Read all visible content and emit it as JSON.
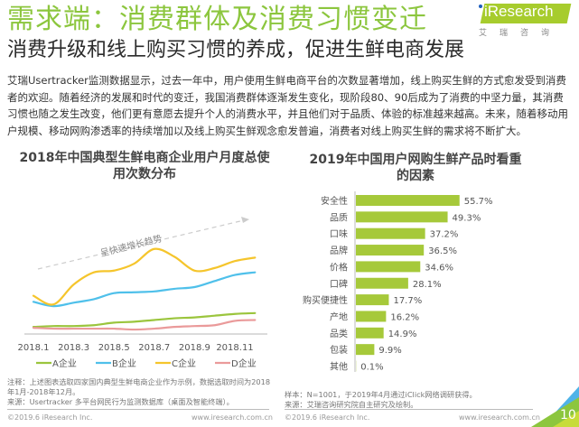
{
  "header": {
    "title": "需求端：消费群体及消费习惯变迁",
    "subtitle": "消费升级和线上购买习惯的养成，促进生鲜电商发展",
    "logo_text": "iResearch",
    "logo_cn": "艾瑞咨询"
  },
  "paragraph": "艾瑞Usertracker监测数据显示，过去一年中，用户使用生鲜电商平台的次数显著增加，线上购买生鲜的方式愈发受到消费者的欢迎。随着经济的发展和时代的变迁，我国消费群体逐渐发生变化，现阶段80、90后成为了消费的中坚力量，其消费习惯也随之发生改变，他们更有意愿去提升个人的消费水平，并且他们对于品质、体验的标准越来越高。未来，随着移动用户规模、移动网购渗透率的持续增加以及线上购买生鲜观念愈发普遍，消费者对线上购买生鲜的需求将不断扩大。",
  "chart_data": [
    {
      "type": "line",
      "title": "2018年中国典型生鲜电商企业用户月度总使用次数分布",
      "xlabel": "",
      "ylabel": "",
      "y_axis_shown": false,
      "y_units": "relative index (no axis values shown; estimated from line height)",
      "ylim": [
        0,
        100
      ],
      "x": [
        "2018.1",
        "2018.2",
        "2018.3",
        "2018.4",
        "2018.5",
        "2018.6",
        "2018.7",
        "2018.8",
        "2018.9",
        "2018.10",
        "2018.11",
        "2018.12"
      ],
      "x_tick_labels": [
        "2018.1",
        "2018.3",
        "2018.5",
        "2018.7",
        "2018.9",
        "2018.11"
      ],
      "series": [
        {
          "name": "A企业",
          "color": "#9bc53d",
          "values": [
            4,
            5,
            5,
            6,
            9,
            10,
            12,
            14,
            15,
            17,
            19,
            20
          ]
        },
        {
          "name": "B企业",
          "color": "#4fc0ea",
          "values": [
            33,
            28,
            32,
            36,
            43,
            44,
            45,
            48,
            50,
            57,
            64,
            67
          ]
        },
        {
          "name": "C企业",
          "color": "#f5c52c",
          "values": [
            40,
            30,
            53,
            67,
            69,
            77,
            94,
            85,
            69,
            72,
            80,
            84
          ]
        },
        {
          "name": "D企业",
          "color": "#ea9a9a",
          "values": [
            3,
            2,
            2,
            2,
            2,
            1,
            2,
            4,
            5,
            6,
            11,
            12
          ]
        }
      ],
      "annotation": "呈快速增长趋势",
      "legend": "bottom",
      "grid": false
    },
    {
      "type": "bar",
      "orientation": "horizontal",
      "title": "2019年中国用户网购生鲜产品时看重的因素",
      "categories": [
        "安全性",
        "品质",
        "口味",
        "品牌",
        "价格",
        "口碑",
        "购买便捷性",
        "产地",
        "品类",
        "包装",
        "其他"
      ],
      "values": [
        55.7,
        49.3,
        37.2,
        36.5,
        34.6,
        28.1,
        17.7,
        16.2,
        14.9,
        9.9,
        0.1
      ],
      "value_labels": [
        "55.7%",
        "49.3%",
        "37.2%",
        "36.5%",
        "34.6%",
        "28.1%",
        "17.7%",
        "16.2%",
        "14.9%",
        "9.9%",
        "0.1%"
      ],
      "unit": "%",
      "color": "#a6c93a",
      "xlim": [
        0,
        60
      ],
      "grid": false
    }
  ],
  "notes_left": {
    "line1": "注释：上述图表选取四家国内典型生鲜电商企业作为示例，数据选取时间为2018年1月-2018年12月。",
    "line2": "来源：Usertracker 多平台网民行为监测数据库（桌面及智能终端）。"
  },
  "notes_right": {
    "line1": "样本：N=1001，于2019年4月通过iClick网络调研获得。",
    "line2": "来源：艾瑞咨询研究院自主研究及绘制。"
  },
  "footer": {
    "copyright": "©2019.6 iResearch Inc.",
    "url": "www.iresearch.com.cn",
    "page_number": "10"
  },
  "colors": {
    "brand_green": "#8cc63e",
    "bar_green": "#a6c93a",
    "page_corner_blue": "#4fb3e8"
  }
}
